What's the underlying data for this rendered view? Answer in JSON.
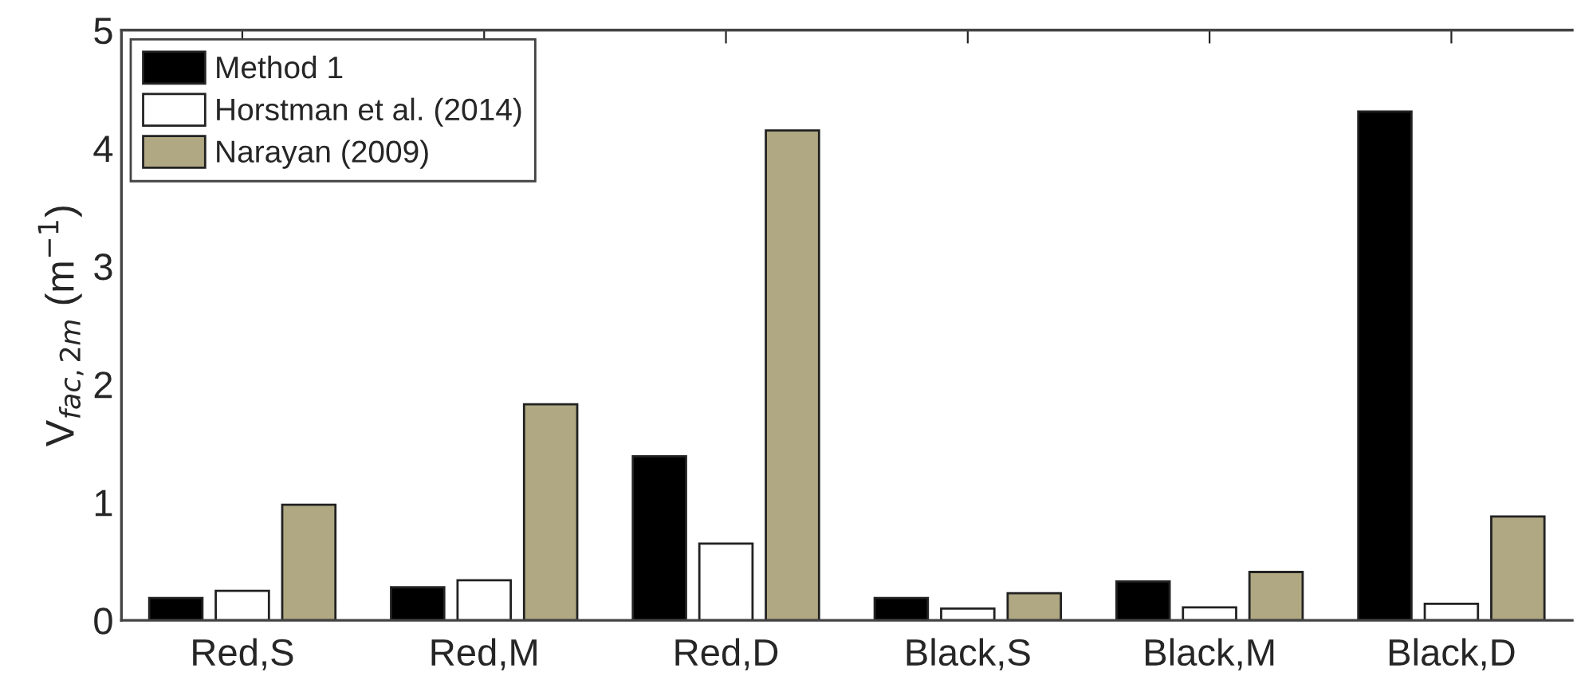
{
  "chart_data": {
    "type": "bar",
    "ylabel": "V$_{fac,2m}$ (m$^{−1}$)",
    "categories": [
      "Red,S",
      "Red,M",
      "Red,D",
      "Black,S",
      "Black,M",
      "Black,D"
    ],
    "series": [
      {
        "name": "Method 1",
        "color": "#000000",
        "values": [
          0.19,
          0.28,
          1.39,
          0.19,
          0.33,
          4.31
        ]
      },
      {
        "name": "Horstman et al. (2014)",
        "color": "#ffffff",
        "values": [
          0.25,
          0.34,
          0.65,
          0.1,
          0.11,
          0.14
        ]
      },
      {
        "name": "Narayan (2009)",
        "color": "#b0a882",
        "values": [
          0.98,
          1.83,
          4.15,
          0.23,
          0.41,
          0.88
        ]
      }
    ],
    "ylim": [
      0,
      5
    ],
    "yticks": [
      0,
      1,
      2,
      3,
      4,
      5
    ],
    "grid": false,
    "legend": "top left"
  }
}
